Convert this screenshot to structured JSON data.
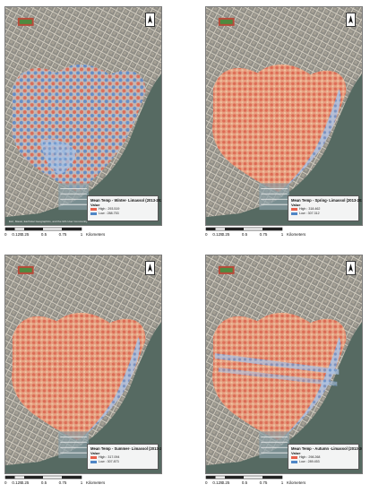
{
  "scale_ticks": [
    "0",
    "0.125",
    "0.25",
    "0.5",
    "0.75",
    "1"
  ],
  "scale_unit": "Kilometers",
  "attribution": "Esri, Maxar, Earthstar Geographics, and the GIS User Community",
  "colors": {
    "high": "#e8604c",
    "low": "#4f86c6",
    "scale_fill": "#222222"
  },
  "icons": {
    "north_arrow": "north-arrow-icon"
  },
  "maps": [
    {
      "title": "Mean Temp - Winter- Limassol (2013-2020)",
      "value_label": "Value",
      "high": "High : 293.519",
      "low": "Low : 288.753"
    },
    {
      "title": "Mean Temp - Spring- Limassol (2013-2020)",
      "value_label": "Value",
      "high": "High : 318.462",
      "low": "Low : 307.312"
    },
    {
      "title": "Mean Temp - Summer- Limassol (2013-2020)",
      "value_label": "Value",
      "high": "High : 317.094",
      "low": "Low : 307.873"
    },
    {
      "title": "Mean Temp - Autumn -Limassol (2013-2020)",
      "value_label": "Value",
      "high": "High : 298.268",
      "low": "Low : 289.453"
    }
  ]
}
